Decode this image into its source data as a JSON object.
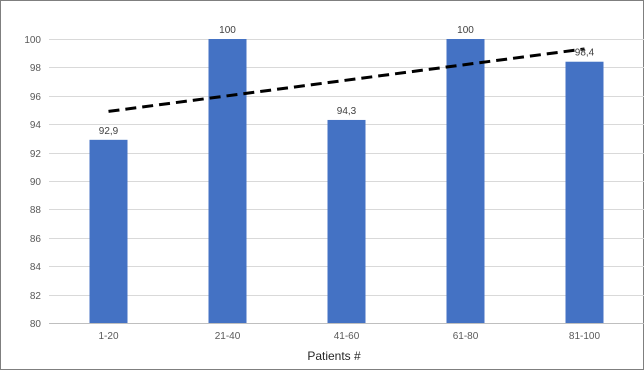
{
  "chart_data": {
    "type": "bar",
    "title": "",
    "xlabel": "Patients #",
    "ylabel": "",
    "categories": [
      "1-20",
      "21-40",
      "41-60",
      "61-80",
      "81-100"
    ],
    "series": [
      {
        "values": [
          92.9,
          100,
          94.3,
          100,
          98.4
        ],
        "data_labels": [
          "92,9",
          "100",
          "94,3",
          "100",
          "98,4"
        ],
        "color": "#4472c4"
      }
    ],
    "trendline": {
      "type": "linear",
      "style": "dashed",
      "color": "#000000",
      "start": {
        "category": "1-20",
        "value": 94.9
      },
      "end": {
        "category": "81-100",
        "value": 99.3
      }
    },
    "ylim": [
      80,
      100
    ],
    "yticks": [
      80,
      82,
      84,
      86,
      88,
      90,
      92,
      94,
      96,
      98,
      100
    ],
    "grid": true,
    "gridline_color": "#d9d9d9",
    "legend": "none"
  }
}
